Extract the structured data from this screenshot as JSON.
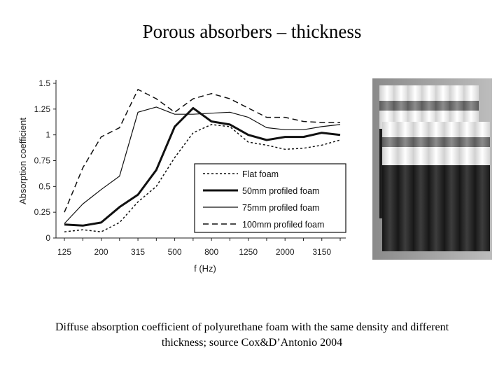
{
  "slide": {
    "title": "Porous absorbers – thickness",
    "caption_line1": "Diffuse absorption coefficient of polyurethane foam with the same density and different",
    "caption_line2": "thickness; source Cox&D’Antonio 2004"
  },
  "chart_data": {
    "type": "line",
    "title": "",
    "xlabel": "f (Hz)",
    "ylabel": "Absorption coefficient",
    "x_scale": "log",
    "categories": [
      "125",
      "160",
      "200",
      "250",
      "315",
      "400",
      "500",
      "630",
      "800",
      "1000",
      "1250",
      "1600",
      "2000",
      "2500",
      "3150",
      "4000"
    ],
    "tick_labels_x": [
      "125",
      "200",
      "315",
      "500",
      "800",
      "1250",
      "2000",
      "3150"
    ],
    "ylim": [
      0,
      1.5
    ],
    "yticks": [
      "0",
      "0.25",
      "0.5",
      "0.75",
      "1",
      "1.25",
      "1.5"
    ],
    "legend_position": "bottom-right",
    "grid": false,
    "series": [
      {
        "name": "Flat foam",
        "dash": "dotted",
        "values": [
          0.06,
          0.08,
          0.06,
          0.15,
          0.35,
          0.5,
          0.78,
          1.02,
          1.1,
          1.08,
          0.93,
          0.9,
          0.86,
          0.87,
          0.9,
          0.95
        ]
      },
      {
        "name": "50mm profiled foam",
        "dash": "thick",
        "values": [
          0.13,
          0.12,
          0.15,
          0.3,
          0.42,
          0.66,
          1.08,
          1.26,
          1.13,
          1.1,
          1.0,
          0.95,
          0.98,
          0.98,
          1.02,
          1.0
        ]
      },
      {
        "name": "75mm profiled foam",
        "dash": "solid",
        "values": [
          0.14,
          0.33,
          0.47,
          0.6,
          1.22,
          1.27,
          1.2,
          1.2,
          1.21,
          1.22,
          1.17,
          1.07,
          1.05,
          1.05,
          1.08,
          1.1
        ]
      },
      {
        "name": "100mm profiled foam",
        "dash": "dashed",
        "values": [
          0.25,
          0.68,
          0.98,
          1.07,
          1.44,
          1.35,
          1.22,
          1.35,
          1.4,
          1.35,
          1.26,
          1.17,
          1.17,
          1.13,
          1.12,
          1.12
        ]
      }
    ]
  },
  "photo": {
    "subject": "stacked profiled foam samples",
    "icon": "foam-samples-photo"
  }
}
